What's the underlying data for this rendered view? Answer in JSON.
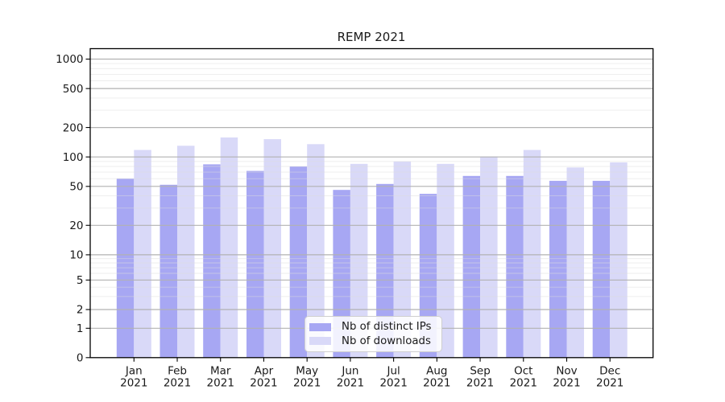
{
  "chart_data": {
    "type": "bar",
    "title": "REMP 2021",
    "categories": [
      "Jan",
      "Feb",
      "Mar",
      "Apr",
      "May",
      "Jun",
      "Jul",
      "Aug",
      "Sep",
      "Oct",
      "Nov",
      "Dec"
    ],
    "category_year": "2021",
    "series": [
      {
        "name": "Nb of distinct IPs",
        "color": "#a7a7f3",
        "values": [
          60,
          52,
          84,
          72,
          80,
          46,
          53,
          42,
          64,
          64,
          57,
          57
        ]
      },
      {
        "name": "Nb of downloads",
        "color": "#d9d9f8",
        "values": [
          118,
          130,
          158,
          152,
          135,
          85,
          90,
          85,
          101,
          118,
          78,
          88
        ]
      }
    ],
    "y_axis": {
      "scale": "log-like",
      "ticks": [
        0,
        1,
        2,
        5,
        10,
        20,
        50,
        100,
        200,
        500,
        1000
      ],
      "minor_ticks": [
        3,
        4,
        6,
        7,
        8,
        9,
        30,
        40,
        60,
        70,
        80,
        90,
        300,
        400,
        600,
        700,
        800,
        900
      ],
      "ylim": [
        0,
        1000
      ]
    },
    "grid": {
      "major_color": "#b2b2b2",
      "minor_color": "#dcdcdc"
    },
    "legend": {
      "position": "inside-bottom-center"
    }
  }
}
